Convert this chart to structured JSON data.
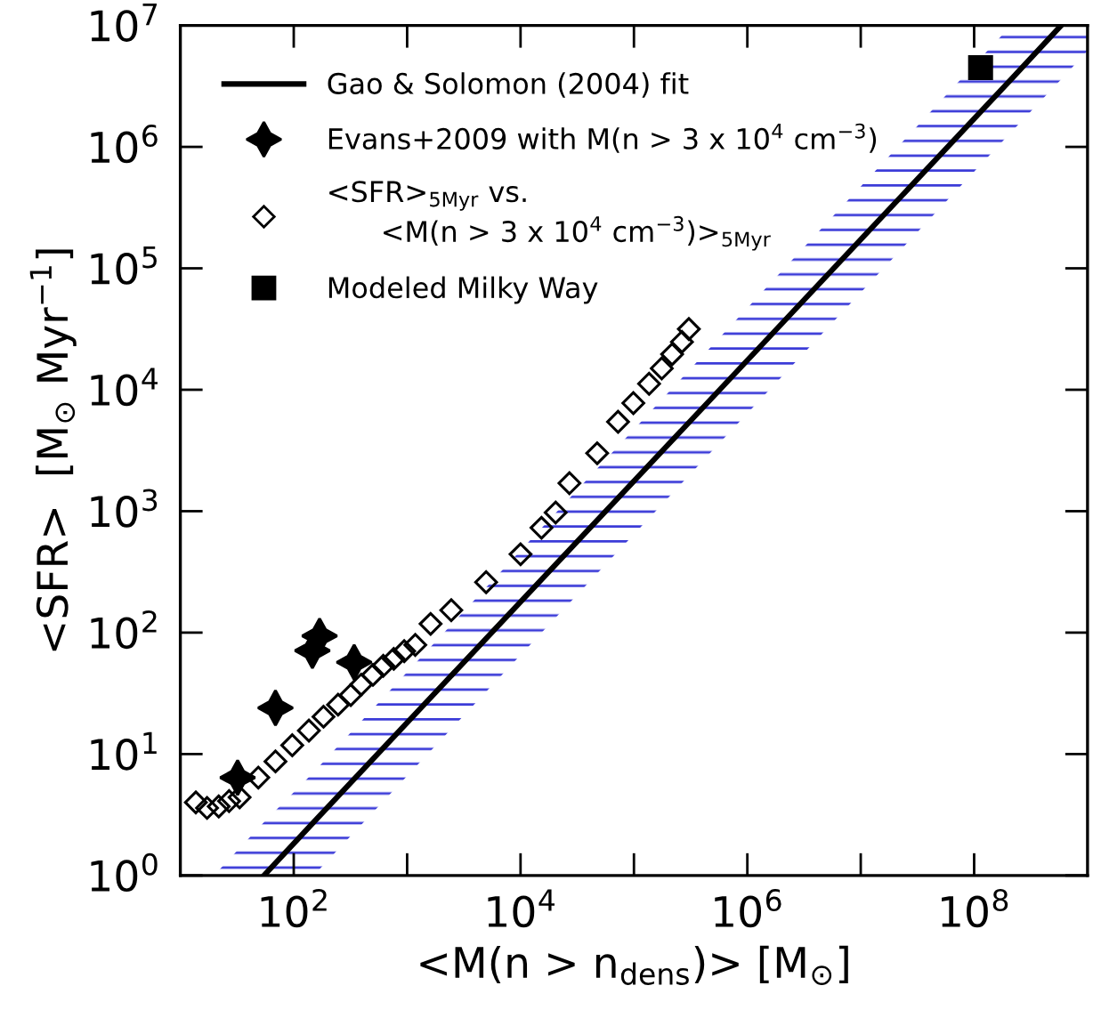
{
  "chart_data": {
    "type": "scatter",
    "xlabel": "<M(n > n$_{dens}$)> [M$_{⊙}$]",
    "ylabel": "<SFR>  [M$_{⊙}$ Myr$^{−1}$]",
    "log": "xy",
    "xlim": [
      10,
      1000000000
    ],
    "ylim": [
      1,
      10000000
    ],
    "xticks": [
      {
        "value": 10,
        "label": null
      },
      {
        "value": 100,
        "label": "10$^{2}$"
      },
      {
        "value": 1000,
        "label": null
      },
      {
        "value": 10000,
        "label": "10$^{4}$"
      },
      {
        "value": 100000,
        "label": null
      },
      {
        "value": 1000000,
        "label": "10$^{6}$"
      },
      {
        "value": 10000000,
        "label": null
      },
      {
        "value": 100000000,
        "label": "10$^{8}$"
      }
    ],
    "yticks": [
      {
        "value": 1,
        "label": "10$^{0}$"
      },
      {
        "value": 10,
        "label": "10$^{1}$"
      },
      {
        "value": 100,
        "label": "10$^{2}$"
      },
      {
        "value": 1000,
        "label": "10$^{3}$"
      },
      {
        "value": 10000,
        "label": "10$^{4}$"
      },
      {
        "value": 100000,
        "label": "10$^{5}$"
      },
      {
        "value": 1000000,
        "label": "10$^{6}$"
      },
      {
        "value": 10000000,
        "label": "10$^{7}$"
      }
    ],
    "grid": false,
    "legend": "top left",
    "series": [
      {
        "type": "line",
        "name": "Gao & Solomon (2004) fit",
        "color": "#000000",
        "line_style": "solid",
        "marker": "none",
        "x": [
          19.8,
          54.6,
          150,
          212000000,
          585000000,
          1000000000
        ],
        "values": [
          null,
          1,
          2.75,
          3600000,
          10000000,
          null
        ],
        "lower": [
          1,
          1,
          1,
          1320000,
          3600000,
          6200000
        ],
        "upper": [
          1,
          2.75,
          7.1,
          10000000,
          10000000,
          10000000
        ]
      },
      {
        "type": "scatter",
        "name": "Evans+2009 with M(n > 3 x 10$^{4}$ cm$^{−3}$)",
        "color": "#000000",
        "marker": "star",
        "x": [
          32,
          69,
          146,
          169,
          341
        ],
        "values": [
          6.4,
          24,
          71,
          94,
          57
        ]
      },
      {
        "type": "scatter",
        "name": "<SFR>$_{5Myr}$ vs.\n      <M(n > 3 x 10$^{4}$ cm$^{−3}$)>$_{5Myr}$",
        "color": "#000000",
        "marker": "diamond",
        "x": [
          13.7,
          17.2,
          21.8,
          26.9,
          33.3,
          48.7,
          69,
          97,
          136,
          183,
          246,
          318,
          393,
          499,
          616,
          762,
          942,
          1180,
          1610,
          2450,
          4970,
          10000,
          15300,
          20400,
          27000,
          47400,
          72400,
          98800,
          136000,
          176000,
          217000,
          265000,
          305000
        ],
        "values": [
          4.0,
          3.6,
          3.7,
          4.1,
          4.4,
          6.4,
          8.7,
          11.8,
          15.6,
          20.3,
          25.5,
          30.6,
          37.3,
          44.9,
          53.3,
          60.8,
          70.3,
          79.2,
          118,
          153,
          260,
          442,
          730,
          975,
          1700,
          3000,
          5440,
          7760,
          11200,
          15000,
          19600,
          24800,
          31600
        ]
      },
      {
        "type": "scatter",
        "name": "Modeled Milky Way",
        "color": "#000000",
        "marker": "square",
        "x": [
          114000000
        ],
        "values": [
          4500000
        ]
      }
    ]
  }
}
